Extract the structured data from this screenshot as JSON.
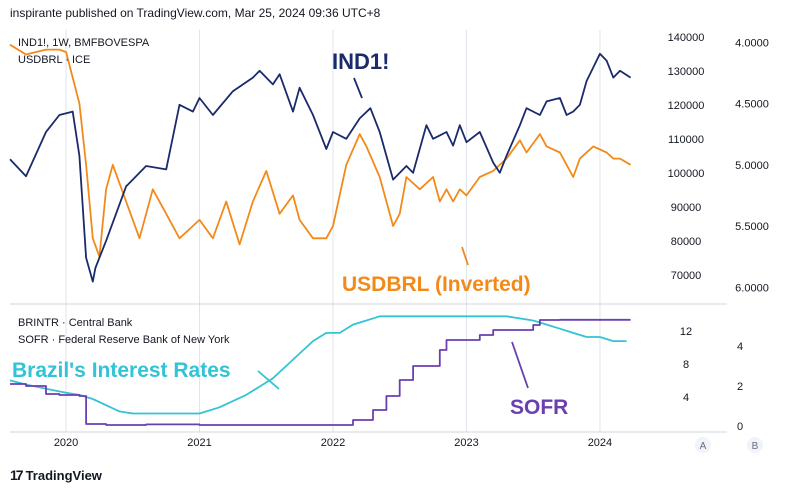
{
  "header": {
    "publisher": "inspirante published on TradingView.com, Mar 25, 2024 09:36 UTC+8"
  },
  "footer": {
    "logo_text": "TradingView"
  },
  "colors": {
    "ind1": "#1b2a6b",
    "usdbrl": "#f28a1a",
    "brintr": "#33c3d6",
    "sofr": "#6b3fb0",
    "grid": "#e0e3eb"
  },
  "chart_data": [
    {
      "type": "line",
      "pane": "top",
      "legend": [
        "IND1!, 1W, BMFBOVESPA",
        "USDBRL · ICE"
      ],
      "annotations": {
        "ind1": "IND1!",
        "usdbrl": "USDBRL (Inverted)"
      },
      "x_ticks": [
        "2020",
        "2021",
        "2022",
        "2023",
        "2024"
      ],
      "y_left": {
        "ticks": [
          140000,
          130000,
          120000,
          110000,
          100000,
          90000,
          80000,
          70000
        ],
        "range": [
          62000,
          142000
        ]
      },
      "y_right": {
        "ticks": [
          4.0,
          4.5,
          5.0,
          5.5,
          6.0
        ],
        "range": [
          3.9,
          6.12
        ],
        "inverted": true
      },
      "series": [
        {
          "name": "IND1!",
          "t": [
            2019.58,
            2019.7,
            2019.85,
            2019.95,
            2020.05,
            2020.1,
            2020.15,
            2020.2,
            2020.22,
            2020.3,
            2020.45,
            2020.6,
            2020.75,
            2020.85,
            2020.95,
            2021.0,
            2021.1,
            2021.25,
            2021.4,
            2021.45,
            2021.55,
            2021.6,
            2021.7,
            2021.75,
            2021.85,
            2021.95,
            2022.0,
            2022.1,
            2022.2,
            2022.28,
            2022.35,
            2022.45,
            2022.55,
            2022.6,
            2022.7,
            2022.75,
            2022.8,
            2022.85,
            2022.9,
            2022.95,
            2023.0,
            2023.1,
            2023.2,
            2023.25,
            2023.3,
            2023.4,
            2023.45,
            2023.55,
            2023.6,
            2023.7,
            2023.75,
            2023.8,
            2023.85,
            2023.9,
            2023.95,
            2024.0,
            2024.05,
            2024.1,
            2024.15,
            2024.23
          ],
          "values": [
            104000,
            99000,
            112000,
            117000,
            118000,
            105000,
            75000,
            68000,
            72000,
            80000,
            96000,
            102000,
            101000,
            120000,
            118000,
            122000,
            117000,
            124000,
            128000,
            130000,
            126000,
            129000,
            118000,
            125000,
            117000,
            107000,
            112000,
            110000,
            116000,
            119000,
            112000,
            98000,
            102000,
            100000,
            114000,
            110000,
            111000,
            112000,
            108000,
            114000,
            109000,
            112000,
            103000,
            100000,
            105000,
            114000,
            119000,
            117000,
            121000,
            122000,
            117000,
            118000,
            120000,
            127000,
            131000,
            135000,
            133000,
            128000,
            130000,
            128000
          ]
        },
        {
          "name": "USDBRL (Inverted)",
          "t": [
            2019.58,
            2019.7,
            2019.85,
            2019.95,
            2020.0,
            2020.1,
            2020.15,
            2020.2,
            2020.25,
            2020.3,
            2020.35,
            2020.45,
            2020.55,
            2020.65,
            2020.75,
            2020.85,
            2020.95,
            2021.0,
            2021.1,
            2021.2,
            2021.3,
            2021.4,
            2021.5,
            2021.6,
            2021.7,
            2021.75,
            2021.85,
            2021.95,
            2022.0,
            2022.1,
            2022.2,
            2022.25,
            2022.35,
            2022.45,
            2022.5,
            2022.55,
            2022.65,
            2022.75,
            2022.8,
            2022.85,
            2022.9,
            2022.95,
            2023.0,
            2023.1,
            2023.2,
            2023.3,
            2023.4,
            2023.45,
            2023.55,
            2023.6,
            2023.7,
            2023.75,
            2023.8,
            2023.85,
            2023.95,
            2024.05,
            2024.1,
            2024.15,
            2024.23
          ],
          "values": [
            4.02,
            4.1,
            4.06,
            4.06,
            4.08,
            4.5,
            5.0,
            5.6,
            5.75,
            5.2,
            5.0,
            5.3,
            5.6,
            5.2,
            5.4,
            5.6,
            5.5,
            5.45,
            5.6,
            5.3,
            5.65,
            5.3,
            5.05,
            5.4,
            5.25,
            5.45,
            5.6,
            5.6,
            5.5,
            5.0,
            4.75,
            4.85,
            5.1,
            5.5,
            5.4,
            5.1,
            5.2,
            5.1,
            5.3,
            5.2,
            5.3,
            5.2,
            5.25,
            5.1,
            5.05,
            4.95,
            4.8,
            4.9,
            4.75,
            4.85,
            4.9,
            5.0,
            5.1,
            4.95,
            4.85,
            4.9,
            4.95,
            4.95,
            5.0
          ]
        }
      ]
    },
    {
      "type": "line",
      "pane": "bottom",
      "legend": [
        "BRINTR · Central Bank",
        "SOFR · Federal Reserve Bank of New York"
      ],
      "annotations": {
        "brintr": "Brazil's Interest Rates",
        "sofr": "SOFR"
      },
      "x_ticks": [
        "2020",
        "2021",
        "2022",
        "2023",
        "2024"
      ],
      "y_left": {
        "ticks": [
          12,
          8,
          4
        ],
        "range": [
          0,
          15
        ]
      },
      "y_right": {
        "ticks": [
          4,
          2,
          0
        ],
        "range": [
          -0.2,
          6
        ]
      },
      "series": [
        {
          "name": "Brazil's Interest Rates",
          "axis": "left",
          "t": [
            2019.58,
            2019.7,
            2019.85,
            2020.0,
            2020.1,
            2020.2,
            2020.3,
            2020.4,
            2020.5,
            2020.6,
            2021.0,
            2021.15,
            2021.25,
            2021.35,
            2021.45,
            2021.55,
            2021.65,
            2021.75,
            2021.85,
            2021.95,
            2022.05,
            2022.15,
            2022.25,
            2022.35,
            2022.45,
            2022.6,
            2023.0,
            2023.3,
            2023.5,
            2023.6,
            2023.7,
            2023.8,
            2023.9,
            2024.0,
            2024.1,
            2024.2
          ],
          "values": [
            6.0,
            5.5,
            5.0,
            4.5,
            4.25,
            3.75,
            3.0,
            2.25,
            2.0,
            2.0,
            2.0,
            2.75,
            3.5,
            4.25,
            5.25,
            6.25,
            7.75,
            9.25,
            10.75,
            11.75,
            11.75,
            12.75,
            13.25,
            13.75,
            13.75,
            13.75,
            13.75,
            13.75,
            13.25,
            12.75,
            12.25,
            11.75,
            11.25,
            11.25,
            10.75,
            10.75
          ]
        },
        {
          "name": "SOFR",
          "axis": "right",
          "t": [
            2019.58,
            2019.7,
            2019.85,
            2019.95,
            2020.1,
            2020.15,
            2020.3,
            2020.6,
            2021.0,
            2021.5,
            2022.0,
            2022.15,
            2022.3,
            2022.4,
            2022.5,
            2022.6,
            2022.7,
            2022.8,
            2022.85,
            2022.95,
            2023.0,
            2023.1,
            2023.2,
            2023.35,
            2023.5,
            2023.55,
            2023.7,
            2024.0,
            2024.23
          ],
          "values": [
            2.1,
            2.0,
            1.6,
            1.55,
            1.5,
            0.1,
            0.05,
            0.08,
            0.05,
            0.05,
            0.05,
            0.3,
            0.8,
            1.5,
            2.3,
            3.0,
            3.0,
            3.8,
            4.3,
            4.3,
            4.3,
            4.55,
            4.8,
            4.8,
            5.05,
            5.3,
            5.31,
            5.31,
            5.31
          ]
        }
      ]
    }
  ]
}
